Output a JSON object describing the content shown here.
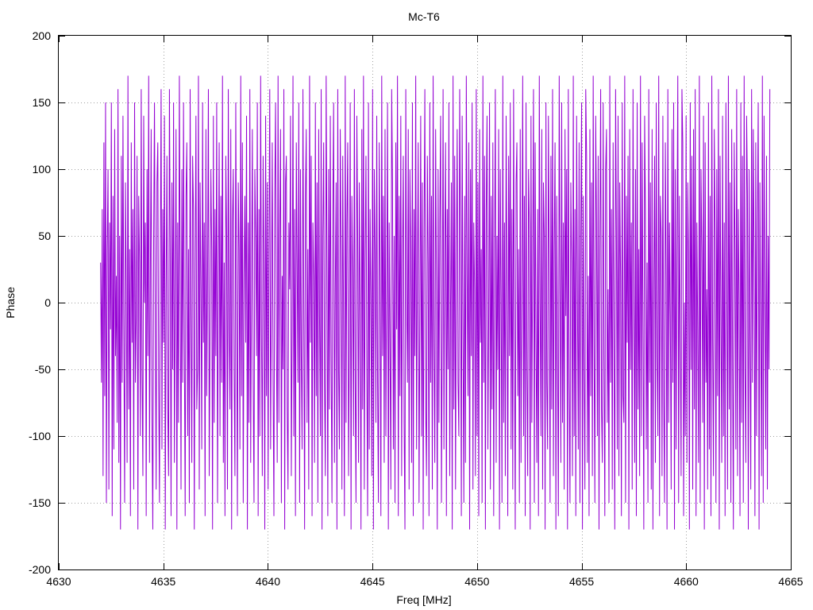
{
  "chart_data": {
    "type": "line",
    "title": "Mc-T6",
    "xlabel": "Freq [MHz]",
    "ylabel": "Phase",
    "xlim": [
      4630,
      4665
    ],
    "ylim": [
      -200,
      200
    ],
    "xticks": [
      4630,
      4635,
      4640,
      4645,
      4650,
      4655,
      4660,
      4665
    ],
    "yticks": [
      -200,
      -150,
      -100,
      -50,
      0,
      50,
      100,
      150,
      200
    ],
    "xtick_labels": [
      "4630",
      "4635",
      "4640",
      "4645",
      "4650",
      "4655",
      "4660",
      "4665"
    ],
    "ytick_labels": [
      "-200",
      "-150",
      "-100",
      "-50",
      "0",
      "50",
      "100",
      "150",
      "200"
    ],
    "grid": true,
    "legend": "none",
    "series": [
      {
        "color": "#9400d3",
        "x_start": 4632,
        "x_end": 4664,
        "x_step": 0.0625,
        "values": [
          30,
          -60,
          70,
          -130,
          120,
          -70,
          150,
          -150,
          40,
          100,
          -140,
          60,
          -20,
          150,
          -160,
          80,
          -110,
          130,
          -40,
          20,
          -90,
          160,
          -120,
          50,
          -170,
          110,
          -60,
          140,
          -20,
          -150,
          90,
          10,
          -120,
          170,
          -80,
          40,
          -160,
          120,
          -30,
          70,
          -140,
          150,
          -60,
          -10,
          110,
          -170,
          80,
          30,
          -100,
          160,
          -50,
          -130,
          140,
          0,
          60,
          -160,
          100,
          -40,
          170,
          -120,
          20,
          130,
          -90,
          -170,
          50,
          150,
          -20,
          -140,
          90,
          120,
          -60,
          -150,
          30,
          160,
          -110,
          70,
          -30,
          140,
          -170,
          10,
          110,
          -80,
          -130,
          160,
          40,
          -160,
          90,
          -50,
          150,
          -120,
          0,
          130,
          -170,
          60,
          -90,
          170,
          20,
          -140,
          100,
          -60,
          150,
          -30,
          -160,
          80,
          120,
          -100,
          40,
          -150,
          160,
          -10,
          -120,
          110,
          70,
          -170,
          30,
          140,
          -80,
          -50,
          170,
          -140,
          90,
          10,
          -110,
          150,
          -30,
          60,
          -160,
          130,
          -70,
          20,
          160,
          -130,
          -20,
          100,
          40,
          -170,
          140,
          -90,
          70,
          -40,
          150,
          -150,
          10,
          120,
          -100,
          80,
          -60,
          170,
          -120,
          30,
          -160,
          110,
          50,
          -140,
          160,
          -20,
          -80,
          130,
          -170,
          60,
          100,
          -50,
          -130,
          150,
          0,
          -160,
          90,
          40,
          -110,
          170,
          -70,
          120,
          -150,
          20,
          80,
          -30,
          140,
          -170,
          60,
          -90,
          160,
          -120,
          10,
          130,
          -60,
          -150,
          100,
          50,
          -40,
          150,
          -160,
          70,
          -100,
          170,
          -20,
          -130,
          110,
          30,
          -170,
          140,
          -70,
          90,
          -140,
          40,
          160,
          -110,
          0,
          120,
          -60,
          -160,
          80,
          150,
          -30,
          -120,
          170,
          -90,
          50,
          130,
          -150,
          20,
          -50,
          160,
          -170,
          90,
          110,
          -80,
          -140,
          60,
          10,
          140,
          -130,
          -20,
          170,
          -100,
          70,
          -160,
          120,
          30,
          -60,
          150,
          -150,
          100,
          -40,
          -110,
          160,
          0,
          -170,
          80,
          130,
          -90,
          40,
          -140,
          170,
          -30,
          110,
          -160,
          60,
          20,
          -120,
          150,
          -70,
          90,
          -150,
          130,
          -10,
          -100,
          160,
          -170,
          50,
          120,
          -60,
          -130,
          170,
          30,
          -160,
          100,
          -80,
          140,
          -40,
          -150,
          70,
          150,
          -120,
          10,
          90,
          -170,
          160,
          -50,
          -110,
          130,
          40,
          -140,
          110,
          -20,
          -160,
          170,
          -90,
          60,
          120,
          -130,
          -30,
          150,
          -170,
          80,
          20,
          -100,
          160,
          -60,
          -150,
          140,
          50,
          -120,
          90,
          -10,
          -170,
          130,
          -80,
          170,
          -140,
          30,
          110,
          -50,
          -160,
          150,
          -110,
          70,
          0,
          -130,
          160,
          -170,
          100,
          40,
          -90,
          140,
          -60,
          -150,
          120,
          20,
          -160,
          170,
          -40,
          80,
          -120,
          130,
          -100,
          10,
          150,
          -170,
          60,
          -30,
          -140,
          160,
          90,
          -110,
          50,
          -150,
          120,
          -20,
          170,
          -160,
          80,
          -70,
          140,
          -130,
          30,
          110,
          -90,
          -170,
          160,
          0,
          -60,
          130,
          -140,
          100,
          40,
          -120,
          150,
          -160,
          70,
          -40,
          170,
          -110,
          20,
          120,
          -150,
          -10,
          140,
          -100,
          90,
          -170,
          50,
          160,
          -80,
          -130,
          110,
          30,
          -160,
          150,
          -60,
          80,
          -140,
          170,
          -30,
          -120,
          130,
          10,
          -170,
          100,
          -90,
          60,
          140,
          -150,
          -20,
          160,
          -110,
          40,
          120,
          -160,
          70,
          -50,
          150,
          -130,
          0,
          90,
          -170,
          170,
          -80,
          110,
          -140,
          30,
          130,
          -60,
          -100,
          160,
          50,
          -160,
          140,
          -20,
          -150,
          80,
          -120,
          170,
          20,
          -70,
          120,
          -170,
          100,
          -40,
          150,
          -140,
          60,
          10,
          -130,
          160,
          -100,
          90,
          -160,
          130,
          -30,
          40,
          -150,
          170,
          -60,
          110,
          -170,
          70,
          140,
          -110,
          -10,
          150,
          -140,
          80,
          -80,
          120,
          -160,
          30,
          160,
          -120,
          50,
          -50,
          130,
          -170,
          100,
          0,
          -150,
          170,
          -90,
          60,
          -130,
          140,
          20,
          -160,
          110,
          -40,
          150,
          -110,
          70,
          -140,
          160,
          -20,
          -170,
          90,
          120,
          -70,
          40,
          -150,
          130,
          -120,
          10,
          170,
          -100,
          80,
          -160,
          150,
          -50,
          -130,
          100,
          60,
          -170,
          140,
          -90,
          30,
          160,
          -150,
          120,
          -30,
          -120,
          70,
          -160,
          170,
          0,
          -100,
          130,
          -140,
          90,
          50,
          -170,
          150,
          -60,
          -110,
          140,
          20,
          -150,
          110,
          -80,
          160,
          -130,
          40,
          120,
          -170,
          80,
          -40,
          -160,
          170,
          10,
          -120,
          150,
          -90,
          60,
          -140,
          130,
          -10,
          100,
          -170,
          160,
          -60,
          -150,
          90,
          30,
          -130,
          170,
          -100,
          70,
          -160,
          140,
          0,
          -110,
          120,
          -150,
          50,
          150,
          -170,
          80,
          -50,
          -140,
          160,
          110,
          -120,
          20,
          -160,
          130,
          -70,
          90,
          -130,
          170,
          -30,
          -150,
          140,
          60,
          -100,
          110,
          -170,
          40,
          160,
          -80,
          -120,
          150,
          -40,
          -160,
          100,
          130,
          -90,
          10,
          -150,
          170,
          -60,
          70,
          -140,
          120,
          -20,
          -170,
          160,
          50,
          -110,
          140,
          -130,
          90,
          20,
          -160,
          150,
          -70,
          -90,
          170,
          -150,
          80,
          -30,
          110,
          -170,
          130,
          -50,
          60,
          -140,
          160,
          0,
          -120,
          100,
          -160,
          150,
          -80,
          40,
          -130,
          170,
          -100,
          120,
          -20,
          -170,
          140,
          70,
          -110,
          30,
          -150,
          160,
          -60,
          90,
          -140,
          130,
          -170,
          10,
          110,
          -120,
          150,
          -40,
          -100,
          170,
          -160,
          80,
          50,
          -130,
          140,
          -70,
          -150,
          120,
          20,
          -170,
          160,
          -90,
          60,
          -10,
          -140,
          130,
          -60,
          150,
          -170,
          100,
          -110,
          40,
          170,
          -150,
          80,
          -30,
          -130,
          160,
          120,
          -160,
          0,
          -100,
          140,
          -120,
          90,
          30,
          -170,
          150,
          -50,
          110,
          -140,
          130,
          -80,
          160,
          -160,
          60,
          -20,
          -120,
          170,
          -150,
          100,
          40,
          -90,
          140,
          -170,
          120,
          -60,
          10,
          -140,
          150,
          -110,
          80,
          -160,
          170,
          -30,
          -130,
          130,
          50,
          -150,
          100,
          -70,
          160,
          -170,
          110,
          -10,
          -120,
          140,
          -100,
          60,
          -160,
          150,
          20,
          -140,
          170,
          -80,
          90,
          -150,
          130,
          -40,
          -170,
          120,
          40,
          -110,
          160,
          -130,
          70,
          0,
          -160,
          150,
          -90,
          110,
          -150,
          170,
          -50,
          -120,
          140,
          80,
          -170,
          100,
          -30,
          -140,
          160,
          -60,
          130,
          30,
          -160,
          120,
          -100,
          60,
          150,
          -170,
          90,
          -20,
          -130,
          170,
          -150,
          140,
          10,
          -110,
          110,
          -140,
          50,
          -50,
          160
        ]
      }
    ]
  }
}
